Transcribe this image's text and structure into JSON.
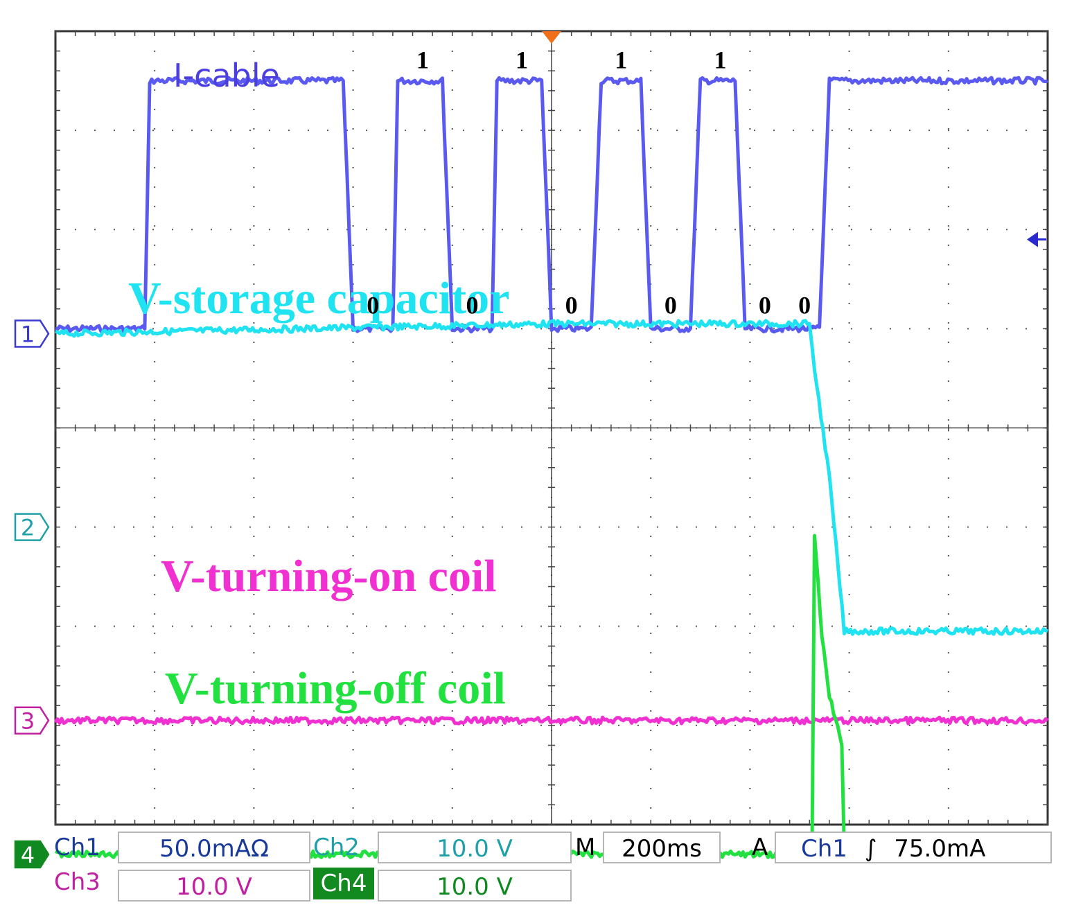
{
  "chart_data": {
    "type": "line",
    "title": "",
    "time_per_division": "200ms",
    "grid": true,
    "divisions": {
      "x": 10,
      "y": 8
    },
    "xlim": [
      -1000,
      1000
    ],
    "ylim": [
      -4,
      4
    ],
    "xunit": "ms",
    "yunit": "div",
    "series": [
      {
        "name": "I-cable",
        "color": "#5a5af0",
        "label_color": "#4b3fe0",
        "marker": "",
        "low": 1.0,
        "high": 3.5,
        "x": [
          -1000,
          -820,
          -810,
          -420,
          -400,
          -320,
          -310,
          -220,
          -200,
          -120,
          -110,
          -20,
          0,
          80,
          100,
          180,
          200,
          280,
          300,
          370,
          390,
          540,
          560,
          1000
        ],
        "y": [
          1.0,
          1.0,
          3.5,
          3.5,
          1.0,
          1.0,
          3.5,
          3.5,
          1.0,
          1.0,
          3.5,
          3.5,
          1.0,
          1.0,
          3.5,
          3.5,
          1.0,
          1.0,
          3.5,
          3.5,
          1.0,
          1.0,
          3.5,
          3.5
        ],
        "bits": [
          {
            "t": "0",
            "x": -360,
            "level": "low"
          },
          {
            "t": "1",
            "x": -260,
            "level": "high"
          },
          {
            "t": "0",
            "x": -160,
            "level": "low"
          },
          {
            "t": "1",
            "x": -60,
            "level": "high"
          },
          {
            "t": "0",
            "x": 40,
            "level": "low"
          },
          {
            "t": "1",
            "x": 140,
            "level": "high"
          },
          {
            "t": "0",
            "x": 240,
            "level": "low"
          },
          {
            "t": "1",
            "x": 340,
            "level": "high"
          },
          {
            "t": "0",
            "x": 430,
            "level": "low"
          },
          {
            "t": "0",
            "x": 510,
            "level": "low"
          }
        ]
      },
      {
        "name": "V-storage capacitor",
        "color": "#1fe3f0",
        "marker": "1",
        "marker_color": "#3a3ad0",
        "x": [
          -1000,
          0,
          520,
          530,
          560,
          590,
          1000
        ],
        "y": [
          0.95,
          1.05,
          1.05,
          0.6,
          -0.5,
          -2.05,
          -2.05
        ]
      },
      {
        "name": "V-turning-on coil",
        "color": "#f030d0",
        "marker": "3",
        "marker_color": "#c020a0",
        "x": [
          -1000,
          1000
        ],
        "y": [
          -2.95,
          -2.95
        ]
      },
      {
        "name": "V-turning-off coil",
        "color": "#22e040",
        "marker": "4",
        "marker_color": "#108a20",
        "x": [
          -1000,
          520,
          525,
          530,
          545,
          560,
          585,
          590,
          1000
        ],
        "y": [
          -4.3,
          -4.3,
          -4.3,
          -1.1,
          -2.1,
          -2.7,
          -3.2,
          -4.2,
          -4.2
        ]
      }
    ],
    "ch2_marker": {
      "label": "2",
      "color": "#1fa0a8"
    },
    "trigger_arrow_color": "#2a2ad0"
  },
  "status_bar": {
    "ch1": {
      "label": "Ch1",
      "value": "50.0mAΩ",
      "color": "#1a3a9a"
    },
    "ch2": {
      "label": "Ch2",
      "value": "10.0 V",
      "color": "#1fa0a8"
    },
    "timebase": {
      "label": "M",
      "value": "200ms"
    },
    "trigger": {
      "label": "A",
      "source": "Ch1",
      "slope": "∫",
      "level": "75.0mA",
      "color": "#1a3a9a"
    },
    "ch3": {
      "label": "Ch3",
      "value": "10.0 V",
      "color": "#c020a0"
    },
    "ch4": {
      "label": "Ch4",
      "value": "10.0 V",
      "color": "#108a20",
      "label_bg": "#138a20"
    }
  }
}
